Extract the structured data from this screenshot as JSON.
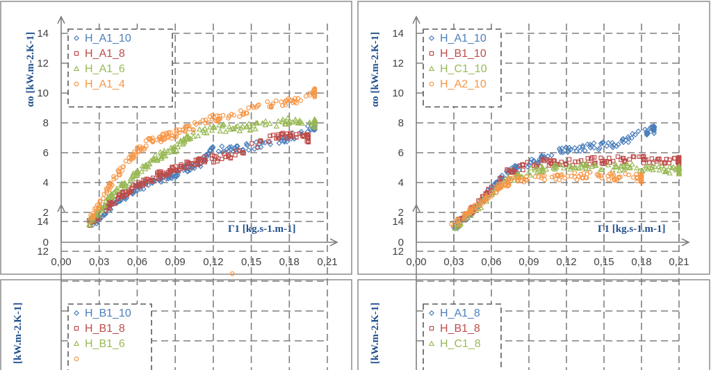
{
  "colors": {
    "blue": "#4a7ebb",
    "red": "#be4b48",
    "green": "#98b954",
    "orange": "#f79646",
    "grid": "#7f7f7f",
    "axis_label": "#1f4e8c"
  },
  "chart_data": [
    {
      "type": "scatter",
      "xlabel": "Γ1 [kg.s-1.m-1]",
      "ylabel": "αo [kW.m-2.K-1]",
      "xlim": [
        0,
        0.21
      ],
      "ylim": [
        0,
        14
      ],
      "xticks": [
        "0,00",
        "0,03",
        "0,06",
        "0,09",
        "0,12",
        "0,15",
        "0,18",
        "0,21"
      ],
      "yticks": [
        "0",
        "2",
        "4",
        "6",
        "8",
        "10",
        "12",
        "14"
      ],
      "grid": true,
      "legend_position": "top-left",
      "series": [
        {
          "name": "H_A1_10",
          "color": "blue",
          "marker": "diamond",
          "points": [
            [
              0.023,
              1.2
            ],
            [
              0.03,
              1.6
            ],
            [
              0.04,
              2.5
            ],
            [
              0.05,
              3.1
            ],
            [
              0.06,
              3.6
            ],
            [
              0.07,
              4.0
            ],
            [
              0.08,
              4.3
            ],
            [
              0.09,
              4.6
            ],
            [
              0.1,
              5.0
            ],
            [
              0.11,
              5.3
            ],
            [
              0.12,
              6.2
            ],
            [
              0.14,
              6.3
            ],
            [
              0.16,
              6.6
            ],
            [
              0.18,
              7.0
            ],
            [
              0.2,
              7.8
            ]
          ]
        },
        {
          "name": "H_A1_8",
          "color": "red",
          "marker": "square",
          "points": [
            [
              0.022,
              1.3
            ],
            [
              0.03,
              1.8
            ],
            [
              0.04,
              2.7
            ],
            [
              0.05,
              3.3
            ],
            [
              0.06,
              3.8
            ],
            [
              0.07,
              4.2
            ],
            [
              0.08,
              4.6
            ],
            [
              0.09,
              4.9
            ],
            [
              0.1,
              5.2
            ],
            [
              0.11,
              5.5
            ],
            [
              0.13,
              5.7
            ],
            [
              0.16,
              6.8
            ],
            [
              0.18,
              7.2
            ],
            [
              0.195,
              7.0
            ]
          ]
        },
        {
          "name": "H_A1_6",
          "color": "green",
          "marker": "triangle",
          "points": [
            [
              0.022,
              1.3
            ],
            [
              0.03,
              2.1
            ],
            [
              0.04,
              3.2
            ],
            [
              0.05,
              3.9
            ],
            [
              0.06,
              4.6
            ],
            [
              0.07,
              5.4
            ],
            [
              0.08,
              5.9
            ],
            [
              0.09,
              6.3
            ],
            [
              0.1,
              7.0
            ],
            [
              0.12,
              7.7
            ],
            [
              0.14,
              7.6
            ],
            [
              0.16,
              7.9
            ],
            [
              0.18,
              8.1
            ],
            [
              0.2,
              8.0
            ]
          ]
        },
        {
          "name": "H_A1_4",
          "color": "orange",
          "marker": "circle",
          "points": [
            [
              0.021,
              1.3
            ],
            [
              0.03,
              2.5
            ],
            [
              0.04,
              4.0
            ],
            [
              0.05,
              5.2
            ],
            [
              0.06,
              6.1
            ],
            [
              0.07,
              6.8
            ],
            [
              0.08,
              7.0
            ],
            [
              0.09,
              7.3
            ],
            [
              0.1,
              7.6
            ],
            [
              0.12,
              8.3
            ],
            [
              0.14,
              8.6
            ],
            [
              0.16,
              9.2
            ],
            [
              0.18,
              9.4
            ],
            [
              0.2,
              10.0
            ]
          ]
        }
      ]
    },
    {
      "type": "scatter",
      "xlabel": "Γ1 [kg.s-1.m-1]",
      "ylabel": "αo [kW.m-2.K-1]",
      "xlim": [
        0,
        0.21
      ],
      "ylim": [
        0,
        14
      ],
      "xticks": [
        "0,00",
        "0,03",
        "0,06",
        "0,09",
        "0,12",
        "0,15",
        "0,18",
        "0,21"
      ],
      "yticks": [
        "0",
        "2",
        "4",
        "6",
        "8",
        "10",
        "12",
        "14"
      ],
      "grid": true,
      "legend_position": "top-left",
      "series": [
        {
          "name": "H_A1_10",
          "color": "blue",
          "marker": "diamond",
          "points": [
            [
              0.03,
              1.0
            ],
            [
              0.04,
              1.6
            ],
            [
              0.05,
              2.6
            ],
            [
              0.06,
              3.5
            ],
            [
              0.07,
              4.4
            ],
            [
              0.08,
              5.0
            ],
            [
              0.1,
              5.6
            ],
            [
              0.12,
              6.2
            ],
            [
              0.14,
              6.4
            ],
            [
              0.16,
              6.6
            ],
            [
              0.18,
              7.3
            ],
            [
              0.19,
              7.6
            ]
          ]
        },
        {
          "name": "H_B1_10",
          "color": "red",
          "marker": "square",
          "points": [
            [
              0.03,
              1.0
            ],
            [
              0.05,
              2.6
            ],
            [
              0.07,
              4.6
            ],
            [
              0.09,
              5.2
            ],
            [
              0.11,
              5.4
            ],
            [
              0.13,
              5.4
            ],
            [
              0.15,
              5.5
            ],
            [
              0.17,
              5.6
            ],
            [
              0.19,
              5.5
            ],
            [
              0.21,
              5.4
            ]
          ]
        },
        {
          "name": "H_C1_10",
          "color": "green",
          "marker": "triangle",
          "points": [
            [
              0.03,
              1.0
            ],
            [
              0.05,
              2.4
            ],
            [
              0.07,
              4.1
            ],
            [
              0.09,
              4.7
            ],
            [
              0.11,
              5.0
            ],
            [
              0.13,
              5.1
            ],
            [
              0.15,
              5.0
            ],
            [
              0.17,
              5.0
            ],
            [
              0.19,
              4.9
            ],
            [
              0.21,
              4.8
            ]
          ]
        },
        {
          "name": "H_A2_10",
          "color": "orange",
          "marker": "circle",
          "points": [
            [
              0.028,
              1.0
            ],
            [
              0.04,
              1.8
            ],
            [
              0.05,
              2.6
            ],
            [
              0.06,
              3.3
            ],
            [
              0.07,
              3.9
            ],
            [
              0.08,
              4.2
            ],
            [
              0.1,
              4.4
            ],
            [
              0.12,
              4.4
            ],
            [
              0.14,
              4.5
            ],
            [
              0.16,
              4.4
            ],
            [
              0.18,
              4.3
            ]
          ]
        }
      ]
    },
    {
      "type": "scatter",
      "ylabel": "[kW.m-2.K-1]",
      "ylim": [
        0,
        14
      ],
      "yticks": [
        "12",
        "14"
      ],
      "grid": true,
      "legend_position": "top-left",
      "series": [
        {
          "name": "H_B1_10",
          "color": "blue",
          "marker": "diamond",
          "points": []
        },
        {
          "name": "H_B1_8",
          "color": "red",
          "marker": "square",
          "points": []
        },
        {
          "name": "H_B1_6",
          "color": "green",
          "marker": "triangle",
          "points": []
        },
        {
          "name": "",
          "color": "orange",
          "marker": "circle",
          "points": [
            [
              0.135,
              10.5
            ]
          ]
        }
      ]
    },
    {
      "type": "scatter",
      "ylabel": "[kW.m-2.K-1]",
      "ylim": [
        0,
        14
      ],
      "yticks": [
        "12",
        "14"
      ],
      "grid": true,
      "legend_position": "top-left",
      "series": [
        {
          "name": "H_A1_8",
          "color": "blue",
          "marker": "diamond",
          "points": []
        },
        {
          "name": "H_B1_8",
          "color": "red",
          "marker": "square",
          "points": []
        },
        {
          "name": "H_C1_8",
          "color": "green",
          "marker": "triangle",
          "points": []
        }
      ]
    }
  ]
}
